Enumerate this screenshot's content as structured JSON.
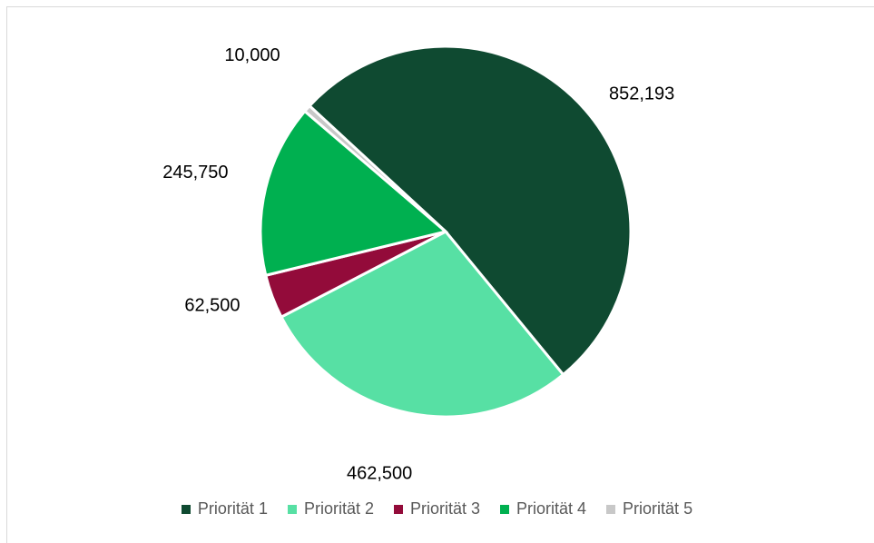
{
  "chart_data": {
    "type": "pie",
    "title": "",
    "categories": [
      "Priorität 1",
      "Priorität 2",
      "Priorität 3",
      "Priorität 4",
      "Priorität 5"
    ],
    "values": [
      852193,
      462500,
      62500,
      245750,
      10000
    ],
    "data_labels": [
      "852,193",
      "462,500",
      "62,500",
      "245,750",
      "10,000"
    ],
    "colors": [
      "#0f4a31",
      "#57e0a4",
      "#930b3a",
      "#00b050",
      "#c8c8c8"
    ],
    "legend_position": "bottom"
  }
}
